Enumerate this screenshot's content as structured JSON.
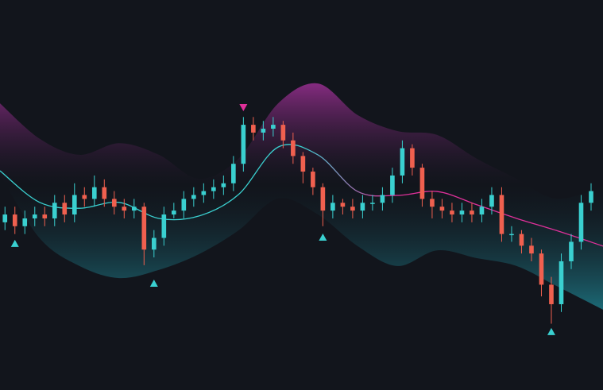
{
  "chart_data": {
    "type": "candlestick",
    "x": [
      0,
      1,
      2,
      3,
      4,
      5,
      6,
      7,
      8,
      9,
      10,
      11,
      12,
      13,
      14,
      15,
      16,
      17,
      18,
      19,
      20,
      21,
      22,
      23,
      24,
      25,
      26,
      27,
      28,
      29,
      30,
      31,
      32,
      33,
      34,
      35,
      36,
      37,
      38,
      39,
      40,
      41,
      42,
      43,
      44,
      45,
      46,
      47,
      48,
      49,
      50,
      51,
      52,
      53,
      54,
      55,
      56,
      57,
      58,
      59
    ],
    "open": [
      43,
      45,
      42,
      44,
      45,
      44,
      48,
      45,
      50,
      49,
      52,
      49,
      47,
      46,
      47,
      36,
      39,
      45,
      46,
      49,
      50,
      51,
      52,
      53,
      58,
      68,
      66,
      67,
      68,
      64,
      60,
      56,
      52,
      46,
      48,
      47,
      46,
      48,
      48,
      50,
      55,
      62,
      57,
      49,
      47,
      46,
      45,
      46,
      45,
      47,
      50,
      40,
      40,
      37,
      35,
      27,
      22,
      33,
      38,
      48
    ],
    "high": [
      47,
      47,
      46,
      47,
      47,
      50,
      50,
      53,
      52,
      55,
      54,
      51,
      49,
      49,
      48,
      41,
      47,
      48,
      51,
      52,
      53,
      54,
      55,
      60,
      70,
      70,
      69,
      70,
      69,
      66,
      61,
      57,
      53,
      50,
      49,
      49,
      50,
      50,
      52,
      57,
      64,
      63,
      58,
      51,
      49,
      48,
      48,
      48,
      49,
      52,
      52,
      42,
      41,
      39,
      36,
      29,
      35,
      40,
      50,
      53
    ],
    "low": [
      41,
      40,
      40,
      42,
      42,
      42,
      43,
      43,
      47,
      47,
      47,
      45,
      44,
      44,
      32,
      34,
      37,
      44,
      44,
      47,
      48,
      49,
      50,
      51,
      56,
      64,
      64,
      65,
      62,
      58,
      53,
      50,
      42,
      44,
      45,
      44,
      44,
      46,
      46,
      48,
      53,
      55,
      47,
      44,
      44,
      43,
      43,
      43,
      43,
      45,
      38,
      38,
      35,
      33,
      24,
      17,
      20,
      31,
      36,
      46
    ],
    "close": [
      45,
      42,
      44,
      45,
      44,
      48,
      45,
      50,
      49,
      52,
      49,
      47,
      46,
      47,
      36,
      39,
      45,
      46,
      49,
      50,
      51,
      52,
      53,
      58,
      68,
      66,
      67,
      68,
      64,
      60,
      56,
      52,
      46,
      48,
      47,
      46,
      48,
      48,
      50,
      55,
      62,
      57,
      49,
      47,
      46,
      45,
      46,
      45,
      47,
      50,
      40,
      40,
      37,
      35,
      27,
      22,
      33,
      38,
      48,
      51
    ],
    "up_color": "#3ad0d0",
    "down_color": "#f0604f",
    "band": {
      "x": [
        -0.5,
        3.5,
        7.5,
        11.5,
        15.5,
        19.5,
        23.5,
        27.5,
        31.5,
        35.5,
        39.5,
        43.5,
        47.5,
        51.5,
        55.5,
        60.2
      ],
      "upper": [
        73.5,
        64.4,
        60.3,
        63.3,
        60.3,
        54.2,
        59.3,
        73.5,
        78.6,
        70.5,
        66.4,
        65.4,
        59.3,
        54.2,
        49.1,
        52.1
      ],
      "lower": [
        55.2,
        38.9,
        31.8,
        28.7,
        30.8,
        34.8,
        40.9,
        49.1,
        45.0,
        36.9,
        31.8,
        35.8,
        33.8,
        31.8,
        26.7,
        20.6
      ],
      "middle": [
        56.2,
        48.1,
        46.6,
        48.1,
        44.0,
        44.6,
        50.1,
        62.3,
        60.3,
        50.9,
        49.9,
        50.9,
        47.5,
        44.0,
        40.9,
        36.9
      ],
      "upper_color": "#9a2f92",
      "lower_color": "#1d7380",
      "line_colors": [
        "#3ad0d0",
        "#e0309a"
      ]
    },
    "signals": [
      {
        "x": 1,
        "y": 37.5,
        "dir": "up",
        "color": "#3ad0d0"
      },
      {
        "x": 15,
        "y": 27.3,
        "dir": "up",
        "color": "#3ad0d0"
      },
      {
        "x": 24,
        "y": 72.5,
        "dir": "down",
        "color": "#e0309a"
      },
      {
        "x": 32,
        "y": 39.1,
        "dir": "up",
        "color": "#3ad0d0"
      },
      {
        "x": 55,
        "y": 14.9,
        "dir": "up",
        "color": "#3ad0d0"
      }
    ],
    "xlim": [
      -0.5,
      60.2
    ],
    "ylim": [
      0,
      100
    ],
    "background": "#12151c"
  }
}
